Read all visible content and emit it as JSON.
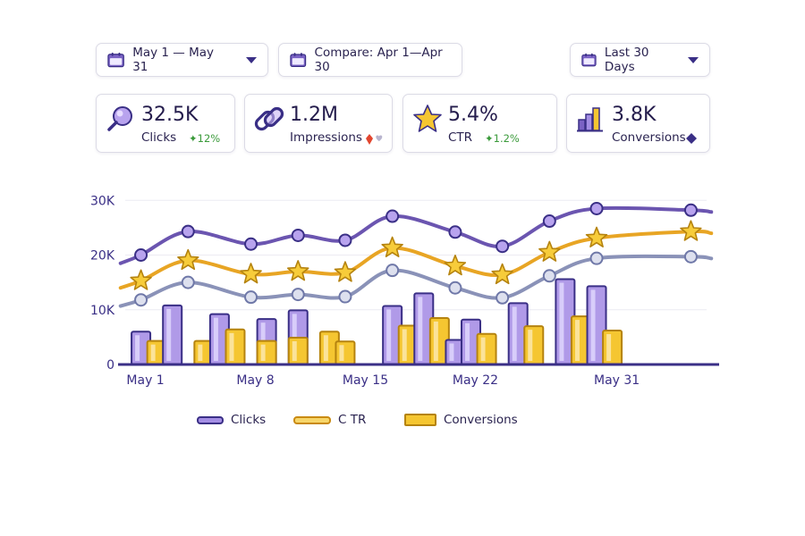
{
  "filters": {
    "date_range": "May 1 — May 31",
    "compare": "Compare: Apr 1—Apr 30",
    "period": "Last 30 Days"
  },
  "kpis": [
    {
      "value": "32.5K",
      "label": "Clicks",
      "delta": "12%",
      "trend": "up",
      "icon": "magnifier-icon"
    },
    {
      "value": "1.2M",
      "label": "Impressions",
      "delta": "",
      "trend": "down",
      "icon": "link-icon"
    },
    {
      "value": "5.4%",
      "label": "CTR",
      "delta": "1.2%",
      "trend": "up",
      "icon": "star-icon"
    },
    {
      "value": "3.8K",
      "label": "Conversions",
      "delta": "",
      "trend": "neutral",
      "icon": "bar-chart-icon"
    }
  ],
  "colors": {
    "clicks": "#6b55b0",
    "ctr": "#e8a524",
    "conv": "#f2c440",
    "third": "#8a92b8",
    "axis": "#3a2f86"
  },
  "chart_data": {
    "type": "line",
    "x": [
      1,
      4,
      8,
      11,
      14,
      17,
      21,
      24,
      27,
      30,
      33,
      35,
      36
    ],
    "x_tick_labels": [
      "May 1",
      "May 8",
      "May 15",
      "May 22",
      "May 31"
    ],
    "x_tick_values": [
      1,
      8,
      15,
      22,
      31
    ],
    "y_tick_labels": [
      "0",
      "10K",
      "20K",
      "30K"
    ],
    "y_tick_values": [
      0,
      10000,
      20000,
      30000
    ],
    "ylim": [
      0,
      32000
    ],
    "series": [
      {
        "name": "Clicks",
        "type": "line",
        "marker": "circle",
        "values": [
          20000,
          24300,
          22000,
          23600,
          22700,
          27100,
          24200,
          21600,
          26200,
          28500,
          null,
          null,
          28200
        ]
      },
      {
        "name": "CTR",
        "type": "line",
        "marker": "star",
        "values": [
          15300,
          19000,
          16500,
          17000,
          16800,
          21300,
          18000,
          16400,
          20500,
          23100,
          null,
          null,
          24300
        ]
      },
      {
        "name": "",
        "type": "line",
        "marker": "circle",
        "values": [
          11800,
          15000,
          12300,
          12800,
          12400,
          17200,
          14000,
          12200,
          16200,
          19400,
          null,
          null,
          19700
        ]
      }
    ],
    "bars": {
      "x": [
        1,
        2,
        3,
        5,
        6,
        7,
        9,
        10,
        11,
        13,
        14,
        15,
        17,
        18,
        19,
        20,
        21,
        22,
        23,
        25,
        26,
        28,
        29,
        30,
        31
      ],
      "clicks": [
        6000,
        null,
        10800,
        null,
        9200,
        null,
        8300,
        null,
        9900,
        null,
        null,
        null,
        10700,
        null,
        13000,
        null,
        4500,
        8200,
        null,
        11200,
        null,
        15600,
        null,
        14300,
        null
      ],
      "conversions": [
        null,
        4300,
        null,
        4300,
        null,
        6400,
        4300,
        null,
        4900,
        6000,
        4200,
        null,
        null,
        7100,
        null,
        8500,
        null,
        null,
        5600,
        null,
        7000,
        null,
        8800,
        null,
        6200
      ]
    },
    "legend": [
      "Clicks",
      "C TR",
      "Conversions"
    ],
    "grid": true
  }
}
